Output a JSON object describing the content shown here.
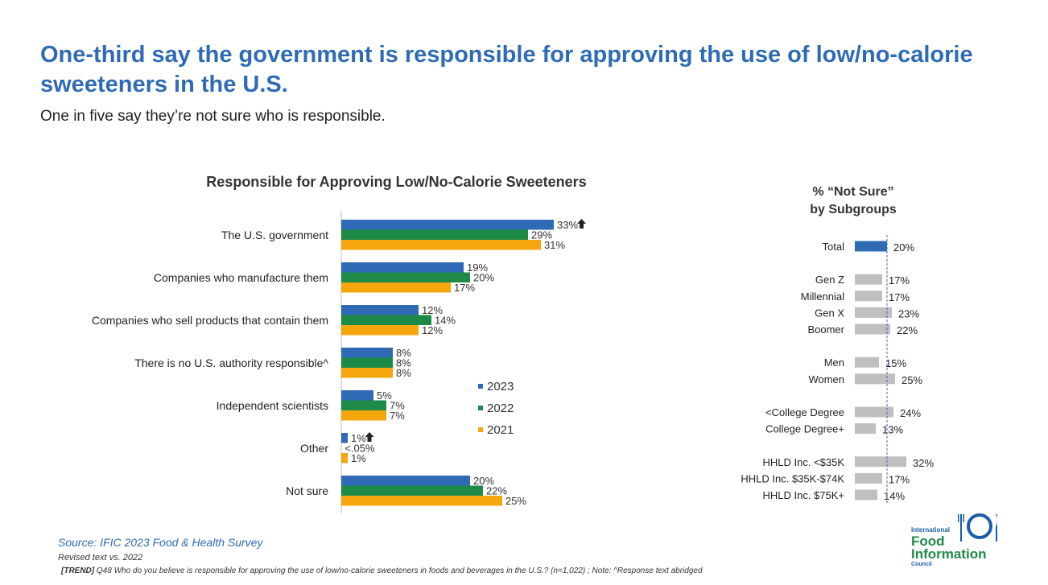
{
  "headline": "One-third say the government is responsible for approving the use of low/no-calorie sweeteners in the U.S.",
  "subheadline": "One in five say they’re not sure who is responsible.",
  "chart_data": [
    {
      "type": "bar",
      "orientation": "horizontal",
      "title": "Responsible for Approving Low/No-Calorie Sweeteners",
      "categories": [
        "The U.S. government",
        "Companies who manufacture them",
        "Companies who sell products that contain them",
        "There is no U.S. authority responsible^",
        "Independent scientists",
        "Other",
        "Not sure"
      ],
      "series": [
        {
          "name": "2023",
          "color": "#2f6bb5",
          "values": [
            33,
            19,
            12,
            8,
            5,
            1,
            20
          ],
          "labels": [
            "33%",
            "19%",
            "12%",
            "8%",
            "5%",
            "1%",
            "20%"
          ]
        },
        {
          "name": "2022",
          "color": "#1e8a48",
          "values": [
            29,
            20,
            14,
            8,
            7,
            0.04,
            22
          ],
          "labels": [
            "29%",
            "20%",
            "14%",
            "8%",
            "7%",
            "<.05%",
            "22%"
          ]
        },
        {
          "name": "2021",
          "color": "#f4a60c",
          "values": [
            31,
            17,
            12,
            8,
            7,
            1,
            25
          ],
          "labels": [
            "31%",
            "17%",
            "12%",
            "8%",
            "7%",
            "1%",
            "25%"
          ]
        }
      ],
      "trend_up_markers": [
        {
          "category": "The U.S. government",
          "series": "2023",
          "icon": "arrow-up-icon"
        },
        {
          "category": "Other",
          "series": "2023",
          "icon": "arrow-up-icon"
        }
      ],
      "xlim": [
        0,
        45
      ],
      "grid": false,
      "legend_position": "right-inside"
    },
    {
      "type": "bar",
      "orientation": "horizontal",
      "title": "% “Not Sure” by Subgroups",
      "title_lines": [
        "% “Not Sure”",
        "by Subgroups"
      ],
      "groups": [
        [
          "Total"
        ],
        [
          "Gen Z",
          "Millennial",
          "Gen X",
          "Boomer"
        ],
        [
          "Men",
          "Women"
        ],
        [
          "<College Degree",
          "College Degree+"
        ],
        [
          "HHLD Inc. <$35K",
          "HHLD Inc. $35K-$74K",
          "HHLD Inc. $75K+"
        ]
      ],
      "categories": [
        "Total",
        "Gen Z",
        "Millennial",
        "Gen X",
        "Boomer",
        "Men",
        "Women",
        "<College Degree",
        "College Degree+",
        "HHLD Inc. <$35K",
        "HHLD Inc. $35K-$74K",
        "HHLD Inc. $75K+"
      ],
      "values": [
        20,
        17,
        17,
        23,
        22,
        15,
        25,
        24,
        13,
        32,
        17,
        14
      ],
      "labels": [
        "20%",
        "17%",
        "17%",
        "23%",
        "22%",
        "15%",
        "25%",
        "24%",
        "13%",
        "32%",
        "17%",
        "14%"
      ],
      "highlight_color": "#2f6bb5",
      "bar_color": "#bfbfbf",
      "reference_line": {
        "value": 20,
        "style": "dashed",
        "color": "#2f6bb5"
      },
      "xlim": [
        0,
        32
      ]
    }
  ],
  "footer": {
    "source": "Source: IFIC 2023 Food & Health Survey",
    "revised": "Revised text vs. 2022",
    "question_tag": "[TREND]",
    "question": " Q48  Who do you believe is responsible for approving the use of low/no-calorie sweeteners in foods and beverages in the U.S.? (n=1,022) ; Note: ^Response text abridged"
  },
  "logo": {
    "line1": "International",
    "line2": "Food",
    "line3": "Information",
    "line4": "Council",
    "icon": "plate-fork-knife-icon",
    "colors": {
      "blue": "#1a5ea8",
      "green": "#1e8a48"
    }
  }
}
